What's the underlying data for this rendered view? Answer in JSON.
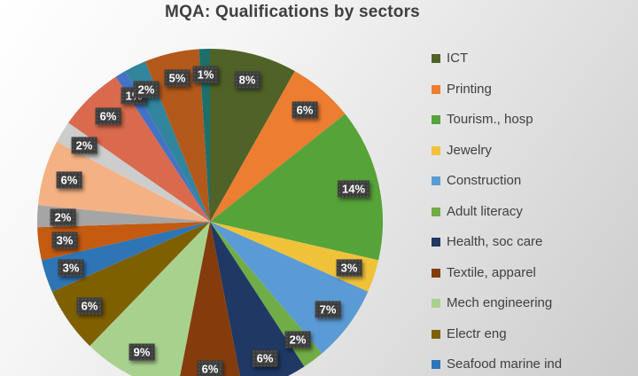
{
  "chart_data": {
    "type": "pie",
    "title": "MQA: Qualifications by sectors",
    "legend_position": "right",
    "start_angle_deg": 0,
    "direction": "clockwise",
    "label_suffix": "%",
    "label_box_color": "#3b3b3b",
    "label_text_color": "#ffffff",
    "slices": [
      {
        "label": "ICT",
        "value": 8,
        "color": "#4f6228"
      },
      {
        "label": "Printing",
        "value": 6,
        "color": "#ed7d31"
      },
      {
        "label": "Tourism., hosp",
        "value": 14,
        "color": "#56a33a"
      },
      {
        "label": "Jewelry",
        "value": 3,
        "color": "#f0c23a"
      },
      {
        "label": "Construction",
        "value": 7,
        "color": "#5b9bd5"
      },
      {
        "label": "Adult literacy",
        "value": 2,
        "color": "#70ad47"
      },
      {
        "label": "Health, soc care",
        "value": 6,
        "color": "#1f3864"
      },
      {
        "label": "Textile, apparel",
        "value": 6,
        "color": "#843c0c"
      },
      {
        "label": "Mech engineering",
        "value": 9,
        "color": "#a9d18e"
      },
      {
        "label": "Electr eng",
        "value": 6,
        "color": "#7f6000"
      },
      {
        "label": "Seafood marine ind",
        "value": 3,
        "color": "#2e75b6"
      },
      {
        "label": "",
        "value": 3,
        "color": "#c55a11"
      },
      {
        "label": "",
        "value": 2,
        "color": "#a5a5a5"
      },
      {
        "label": "",
        "value": 6,
        "color": "#f4b183"
      },
      {
        "label": "",
        "value": 2,
        "color": "#cdcdcd"
      },
      {
        "label": "",
        "value": 6,
        "color": "#d96a4e"
      },
      {
        "label": "",
        "value": 1,
        "color": "#4472c4"
      },
      {
        "label": "",
        "value": 2,
        "color": "#31859c"
      },
      {
        "label": "",
        "value": 5,
        "color": "#b3591b"
      },
      {
        "label": "",
        "value": 1,
        "color": "#1d6f6a"
      }
    ]
  }
}
